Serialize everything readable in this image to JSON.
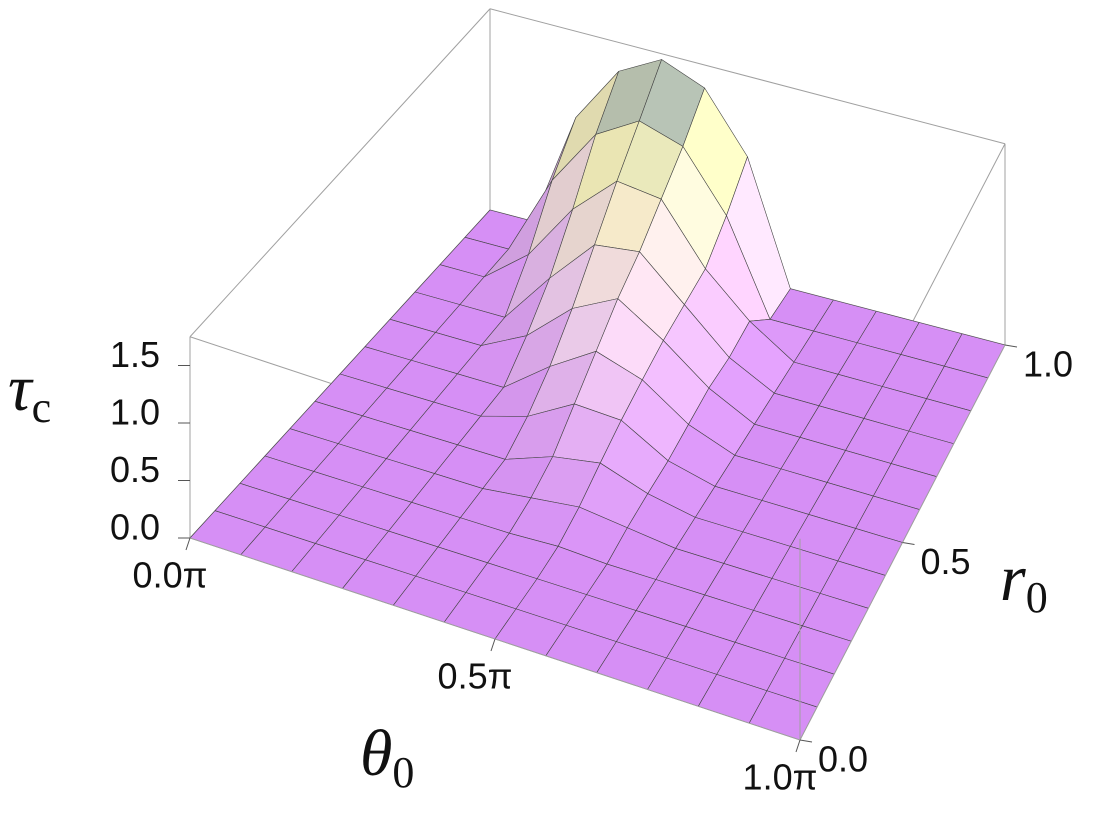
{
  "chart_data": {
    "type": "surface3d",
    "xlabel": {
      "symbol": "θ",
      "subscript": "0"
    },
    "ylabel": {
      "symbol": "r",
      "subscript": "0"
    },
    "zlabel": {
      "symbol": "τ",
      "subscript": "c"
    },
    "x": [
      0,
      0.0833,
      0.1667,
      0.25,
      0.3333,
      0.4167,
      0.5,
      0.5833,
      0.6667,
      0.75,
      0.8333,
      0.9167,
      1
    ],
    "y": [
      0,
      0.0833,
      0.1667,
      0.25,
      0.3333,
      0.4167,
      0.5,
      0.5833,
      0.6667,
      0.75,
      0.8333,
      0.9167,
      1
    ],
    "z": [
      [
        0,
        0,
        0,
        0,
        0,
        0,
        0,
        0,
        0,
        0,
        0,
        0,
        0
      ],
      [
        0,
        0,
        0,
        0,
        0,
        0,
        0,
        0,
        0,
        0,
        0,
        0,
        0
      ],
      [
        0,
        0,
        0,
        0,
        0,
        0,
        0,
        0,
        0,
        0,
        0,
        0,
        0
      ],
      [
        0,
        0,
        0,
        0,
        0,
        0,
        0.02,
        0,
        0,
        0,
        0,
        0,
        0
      ],
      [
        0,
        0,
        0,
        0,
        0,
        0.05,
        0.1,
        0.05,
        0,
        0,
        0,
        0,
        0
      ],
      [
        0,
        0,
        0,
        0,
        0,
        0.15,
        0.22,
        0.08,
        0,
        0,
        0,
        0,
        0
      ],
      [
        0,
        0,
        0,
        0,
        0.12,
        0.35,
        0.33,
        0.1,
        0,
        0,
        0,
        0,
        0
      ],
      [
        0,
        0,
        0,
        0,
        0.3,
        0.55,
        0.42,
        0.15,
        0,
        0,
        0,
        0,
        0
      ],
      [
        0,
        0,
        0,
        0.2,
        0.55,
        0.75,
        0.5,
        0.2,
        0,
        0,
        0,
        0,
        0
      ],
      [
        0,
        0,
        0,
        0.45,
        0.85,
        0.9,
        0.55,
        0.2,
        0,
        0,
        0,
        0,
        0
      ],
      [
        0,
        0,
        0.3,
        0.8,
        1.15,
        1.1,
        0.6,
        0.25,
        0,
        0,
        0,
        0,
        0
      ],
      [
        0,
        0,
        0.7,
        1.2,
        1.42,
        1.3,
        0.8,
        0,
        0,
        0,
        0,
        0,
        0
      ],
      [
        0,
        0,
        1.0,
        1.5,
        1.7,
        1.55,
        1.05,
        0,
        0,
        0,
        0,
        0,
        0
      ]
    ],
    "xlim": [
      0,
      1
    ],
    "ylim": [
      0,
      1
    ],
    "zlim": [
      0,
      1.75
    ],
    "xticks": [
      {
        "value": 0,
        "label": "0.0π"
      },
      {
        "value": 0.5,
        "label": "0.5π"
      },
      {
        "value": 1,
        "label": "1.0π"
      }
    ],
    "yticks": [
      {
        "value": 0,
        "label": "0.0"
      },
      {
        "value": 0.5,
        "label": "0.5"
      },
      {
        "value": 1,
        "label": "1.0"
      }
    ],
    "zticks": [
      {
        "value": 0,
        "label": "0.0"
      },
      {
        "value": 0.5,
        "label": "0.5"
      },
      {
        "value": 1,
        "label": "1.0"
      },
      {
        "value": 1.5,
        "label": "1.5"
      }
    ],
    "colors": [
      "#d68ff5",
      "#f4d6ef",
      "#f3efb8",
      "#7f97aa"
    ],
    "mesh_color": "#444444",
    "box_color": "#a0a0a0"
  }
}
